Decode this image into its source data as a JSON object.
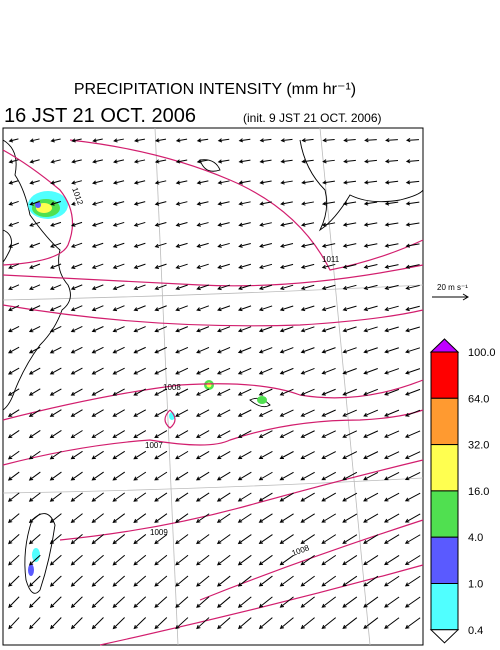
{
  "header": {
    "title": "PRECIPITATION INTENSITY (mm hr⁻¹)",
    "time": "16 JST 21 OCT. 2006",
    "init": "(init. 9 JST 21 OCT. 2006)"
  },
  "map": {
    "contour_labels": [
      "1012",
      "1011",
      "1008",
      "1007",
      "1009",
      "1008"
    ]
  },
  "wind_scale": {
    "label": "20 m s⁻¹"
  },
  "colorbar": {
    "labels": [
      "100.0",
      "64.0",
      "32.0",
      "16.0",
      "4.0",
      "1.0",
      "0.4"
    ],
    "colors": [
      "#ff0000",
      "#ff9a30",
      "#ffff50",
      "#50e050",
      "#5a5aff",
      "#50ffff"
    ],
    "over_color": "#c000ff",
    "under_color": "#ffffff"
  }
}
